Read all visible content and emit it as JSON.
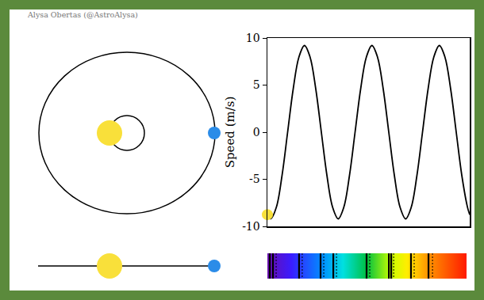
{
  "credit": "Alysa Obertas (@AstroAlysa)",
  "chart_data": {
    "type": "line",
    "y_label": "Speed (m/s)",
    "xlim": [
      0,
      3
    ],
    "ylim": [
      -10,
      10
    ],
    "yticks": [
      -10,
      -5,
      0,
      5,
      10
    ],
    "tick_labels": "y",
    "grid": false,
    "series": [
      {
        "color": "#000000",
        "line_style": "solid",
        "x": [
          0,
          0.05,
          0.133,
          0.217,
          0.3,
          0.383,
          0.467,
          0.55,
          0.633,
          0.717,
          0.8,
          0.883,
          0.967,
          1.05,
          1.133,
          1.217,
          1.3,
          1.383,
          1.467,
          1.55,
          1.633,
          1.717,
          1.8,
          1.883,
          1.967,
          2.05,
          2.133,
          2.217,
          2.3,
          2.383,
          2.467,
          2.55,
          2.633,
          2.717,
          2.8,
          2.883,
          2.967,
          3
        ],
        "values": [
          -8.75,
          -9.2,
          -7.97,
          -4.6,
          0,
          4.6,
          7.97,
          9.2,
          7.97,
          4.6,
          0,
          -4.6,
          -7.97,
          -9.2,
          -7.97,
          -4.6,
          0,
          4.6,
          7.97,
          9.2,
          7.97,
          4.6,
          0,
          -4.6,
          -7.97,
          -9.2,
          -7.97,
          -4.6,
          0,
          4.6,
          7.97,
          9.2,
          7.97,
          4.6,
          0,
          -4.6,
          -7.97,
          -8.75
        ]
      },
      {
        "type": "scatter",
        "marker": "circle",
        "color": "#f9e03a",
        "x": [
          0
        ],
        "values": [
          -8.75
        ]
      }
    ]
  }
}
